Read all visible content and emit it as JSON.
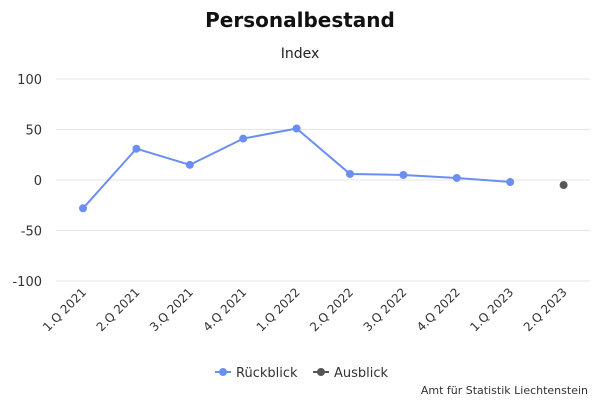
{
  "chart_data": {
    "type": "line",
    "title": "Personalbestand",
    "subtitle": "Index",
    "categories": [
      "1.Q 2021",
      "2.Q 2021",
      "3.Q 2021",
      "4.Q 2021",
      "1.Q 2022",
      "2.Q 2022",
      "3.Q 2022",
      "4.Q 2022",
      "1.Q 2023",
      "2.Q 2023"
    ],
    "series": [
      {
        "name": "Rückblick",
        "color": "#6b8ef2",
        "values": [
          -28,
          31,
          15,
          41,
          51,
          6,
          5,
          2,
          -2,
          null
        ]
      },
      {
        "name": "Ausblick",
        "color": "#555555",
        "values": [
          null,
          null,
          null,
          null,
          null,
          null,
          null,
          null,
          null,
          -5
        ]
      }
    ],
    "ylim": [
      -100,
      100
    ],
    "yticks": [
      100,
      50,
      0,
      -50,
      -100
    ],
    "ytick_labels": [
      "100",
      "50",
      "0",
      "-50",
      "-100"
    ],
    "grid": true,
    "legend": "bottom-center"
  },
  "credit": "Amt für Statistik Liechtenstein"
}
